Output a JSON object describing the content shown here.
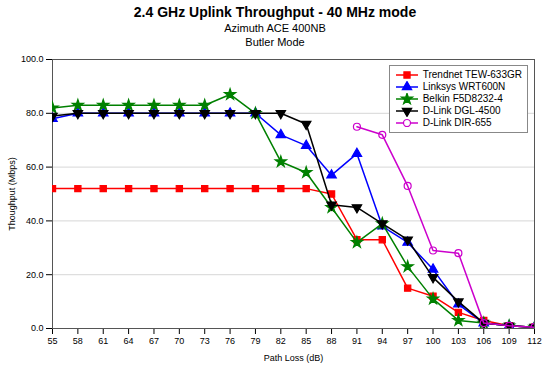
{
  "chart_data": {
    "type": "line",
    "title": "2.4 GHz Uplink Throughput  - 40 MHz mode",
    "subtitle": [
      "Azimuth ACE 400NB",
      "Butler Mode"
    ],
    "xlabel": "Path Loss (dB)",
    "ylabel": "Thoughput (Mbps)",
    "x": [
      55,
      58,
      61,
      64,
      67,
      70,
      73,
      76,
      79,
      82,
      85,
      88,
      91,
      94,
      97,
      100,
      103,
      106,
      109,
      112
    ],
    "series": [
      {
        "name": "Trendnet TEW-633GR",
        "color": "#ff0000",
        "marker": "square",
        "values": [
          52,
          52,
          52,
          52,
          52,
          52,
          52,
          52,
          52,
          52,
          52,
          50,
          33,
          33,
          15,
          12,
          6,
          3,
          1,
          0.5
        ]
      },
      {
        "name": "Linksys WRT600N",
        "color": "#0000ff",
        "marker": "triangle-up",
        "values": [
          78,
          80,
          80,
          80,
          80,
          80,
          80,
          80,
          80,
          72,
          68,
          57,
          65,
          38,
          32,
          22,
          9,
          2,
          1,
          0.5
        ]
      },
      {
        "name": "Belkin F5D8232-4",
        "color": "#008000",
        "marker": "star",
        "values": [
          82,
          83,
          83,
          83,
          83,
          83,
          83,
          87,
          80,
          62,
          58,
          45,
          32,
          39,
          23,
          11,
          3,
          2,
          1,
          0.5
        ]
      },
      {
        "name": "D-Link DGL-4500",
        "color": "#000000",
        "marker": "triangle-down",
        "values": [
          79,
          80,
          80,
          80,
          80,
          80,
          80,
          80,
          80,
          80,
          76,
          46,
          45,
          39,
          33,
          19,
          10,
          2,
          1,
          0.5
        ]
      },
      {
        "name": "D-Link DIR-655",
        "color": "#cc00cc",
        "marker": "circle-open",
        "values": [
          null,
          null,
          null,
          null,
          null,
          null,
          null,
          null,
          null,
          null,
          null,
          null,
          75,
          72,
          53,
          29,
          28,
          2,
          1,
          0.5
        ]
      }
    ],
    "xlim": [
      55,
      112
    ],
    "ylim": [
      0,
      100
    ],
    "xticks": [
      55,
      58,
      61,
      64,
      67,
      70,
      73,
      76,
      79,
      82,
      85,
      88,
      91,
      94,
      97,
      100,
      103,
      106,
      109,
      112
    ],
    "yticks": [
      {
        "value": 0,
        "label": "0.0"
      },
      {
        "value": 20,
        "label": "20.0"
      },
      {
        "value": 40,
        "label": "40.0"
      },
      {
        "value": 60,
        "label": "60.0"
      },
      {
        "value": 80,
        "label": "80.0"
      },
      {
        "value": 100,
        "label": "100.0"
      }
    ],
    "grid": "y",
    "legend": "upper right"
  }
}
